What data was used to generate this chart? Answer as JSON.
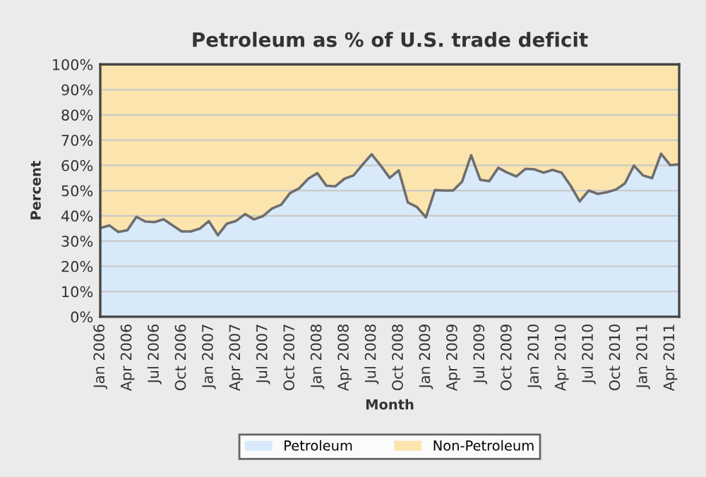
{
  "chart_data": {
    "type": "area",
    "stacked": true,
    "title": "Petroleum as % of U.S. trade deficit",
    "xlabel": "Month",
    "ylabel": "Percent",
    "categories": [
      "Jan 2006",
      null,
      null,
      "Apr 2006",
      null,
      null,
      "Jul 2006",
      null,
      null,
      "Oct 2006",
      null,
      null,
      "Jan 2007",
      null,
      null,
      "Apr 2007",
      null,
      null,
      "Jul 2007",
      null,
      null,
      "Oct 2007",
      null,
      null,
      "Jan 2008",
      null,
      null,
      "Apr 2008",
      null,
      null,
      "Jul 2008",
      null,
      null,
      "Oct 2008",
      null,
      null,
      "Jan 2009",
      null,
      null,
      "Apr 2009",
      null,
      null,
      "Jul 2009",
      null,
      null,
      "Oct 2009",
      null,
      null,
      "Jan 2010",
      null,
      null,
      "Apr 2010",
      null,
      null,
      "Jul 2010",
      null,
      null,
      "Oct 2010",
      null,
      null,
      "Jan 2011",
      null,
      null,
      "Apr 2011",
      null
    ],
    "series": [
      {
        "name": "Petroleum",
        "color": "#d8eaf9",
        "values": [
          35.1,
          36.2,
          33.6,
          34.3,
          39.6,
          37.7,
          37.5,
          38.6,
          36.2,
          33.8,
          33.8,
          34.9,
          37.9,
          32.3,
          36.9,
          37.9,
          40.7,
          38.6,
          39.9,
          42.9,
          44.4,
          49.1,
          50.9,
          54.7,
          56.9,
          51.9,
          51.7,
          54.7,
          56.0,
          60.3,
          64.4,
          59.9,
          55.0,
          58.0,
          45.3,
          43.5,
          39.4,
          50.2,
          50.0,
          50.0,
          53.5,
          64.0,
          54.3,
          53.7,
          59.0,
          57.1,
          55.6,
          58.6,
          58.4,
          57.1,
          58.2,
          57.1,
          51.9,
          45.7,
          50.0,
          48.7,
          49.3,
          50.4,
          52.8,
          59.9,
          56.0,
          54.9,
          64.6,
          60.1,
          60.4
        ]
      },
      {
        "name": "Non-Petroleum",
        "color": "#fbe4ad",
        "values": [
          64.9,
          63.8,
          66.4,
          65.7,
          60.4,
          62.3,
          62.5,
          61.4,
          63.8,
          66.2,
          66.2,
          65.1,
          62.1,
          67.7,
          63.1,
          62.1,
          59.3,
          61.4,
          60.1,
          57.1,
          55.6,
          50.9,
          49.1,
          45.3,
          43.1,
          48.1,
          48.3,
          45.3,
          44.0,
          39.7,
          35.6,
          40.1,
          45.0,
          42.0,
          54.7,
          56.5,
          60.6,
          49.8,
          50.0,
          50.0,
          46.5,
          36.0,
          45.7,
          46.3,
          41.0,
          42.9,
          44.4,
          41.4,
          41.6,
          42.9,
          41.8,
          42.9,
          48.1,
          54.3,
          50.0,
          51.3,
          50.7,
          49.6,
          47.2,
          40.1,
          44.0,
          45.1,
          35.4,
          39.9,
          39.6
        ]
      }
    ],
    "ylim": [
      0,
      100
    ],
    "yticks": [
      {
        "value": 0,
        "label": "0%"
      },
      {
        "value": 10,
        "label": "10%"
      },
      {
        "value": 20,
        "label": "20%"
      },
      {
        "value": 30,
        "label": "30%"
      },
      {
        "value": 40,
        "label": "40%"
      },
      {
        "value": 50,
        "label": "50%"
      },
      {
        "value": 60,
        "label": "60%"
      },
      {
        "value": 70,
        "label": "70%"
      },
      {
        "value": 80,
        "label": "80%"
      },
      {
        "value": 90,
        "label": "90%"
      },
      {
        "value": 100,
        "label": "100%"
      }
    ],
    "grid": "y",
    "legend": "bottom"
  }
}
